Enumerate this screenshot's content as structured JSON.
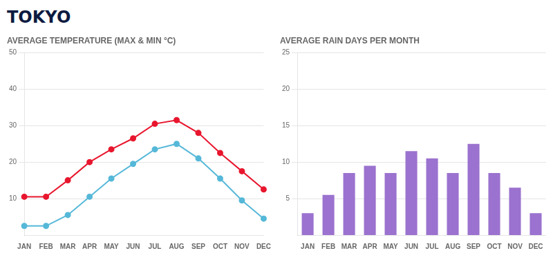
{
  "title": "TOKYO",
  "chart_data": [
    {
      "type": "line",
      "title": "AVERAGE TEMPERATURE (MAX & MIN °C)",
      "categories": [
        "JAN",
        "FEB",
        "MAR",
        "APR",
        "MAY",
        "JUN",
        "JUL",
        "AUG",
        "SEP",
        "OCT",
        "NOV",
        "DEC"
      ],
      "series": [
        {
          "color": "#e8162e",
          "marker": "circle",
          "values": [
            10.5,
            10.5,
            15,
            20,
            23.5,
            26.5,
            30.5,
            31.5,
            28,
            22.5,
            17.5,
            12.5
          ]
        },
        {
          "color": "#56b8d8",
          "marker": "circle",
          "values": [
            2.5,
            2.5,
            5.5,
            10.5,
            15.5,
            19.5,
            23.5,
            25,
            21,
            15.5,
            9.5,
            4.5
          ]
        }
      ],
      "ylim": [
        0,
        50
      ],
      "yticks": [
        10,
        20,
        30,
        40,
        50
      ],
      "grid": true
    },
    {
      "type": "bar",
      "title": "AVERAGE RAIN DAYS PER MONTH",
      "categories": [
        "JAN",
        "FEB",
        "MAR",
        "APR",
        "MAY",
        "JUN",
        "JUL",
        "AUG",
        "SEP",
        "OCT",
        "NOV",
        "DEC"
      ],
      "values": [
        3,
        5.5,
        8.5,
        9.5,
        8.5,
        11.5,
        10.5,
        8.5,
        12.5,
        8.5,
        6.5,
        3
      ],
      "color": "#9b72cf",
      "ylim": [
        0,
        25
      ],
      "yticks": [
        5,
        10,
        15,
        20,
        25
      ],
      "grid": true
    }
  ]
}
